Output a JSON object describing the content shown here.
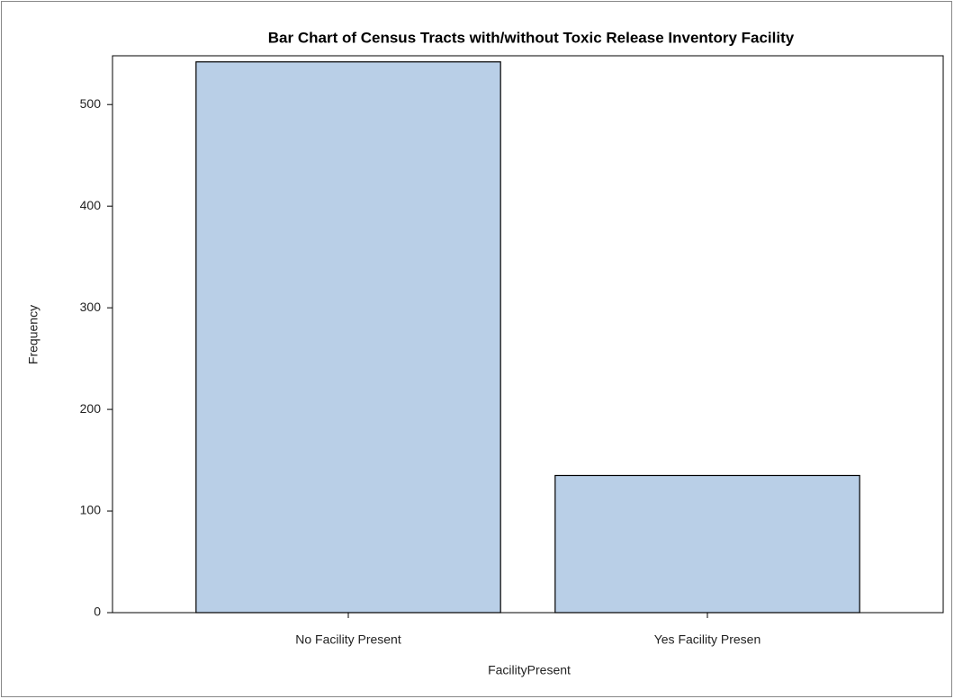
{
  "chart_data": {
    "type": "bar",
    "title": "Bar Chart of Census Tracts with/without Toxic Release Inventory Facility",
    "x_label": "FacilityPresent",
    "y_label": "Frequency",
    "categories": [
      "No Facility Present",
      "Yes Facility Presen"
    ],
    "values": [
      542,
      135
    ],
    "color": "#b9cfe7",
    "ylim": [
      0,
      548
    ],
    "yticks": [
      0,
      100,
      200,
      300,
      400,
      500
    ],
    "grid": false
  }
}
